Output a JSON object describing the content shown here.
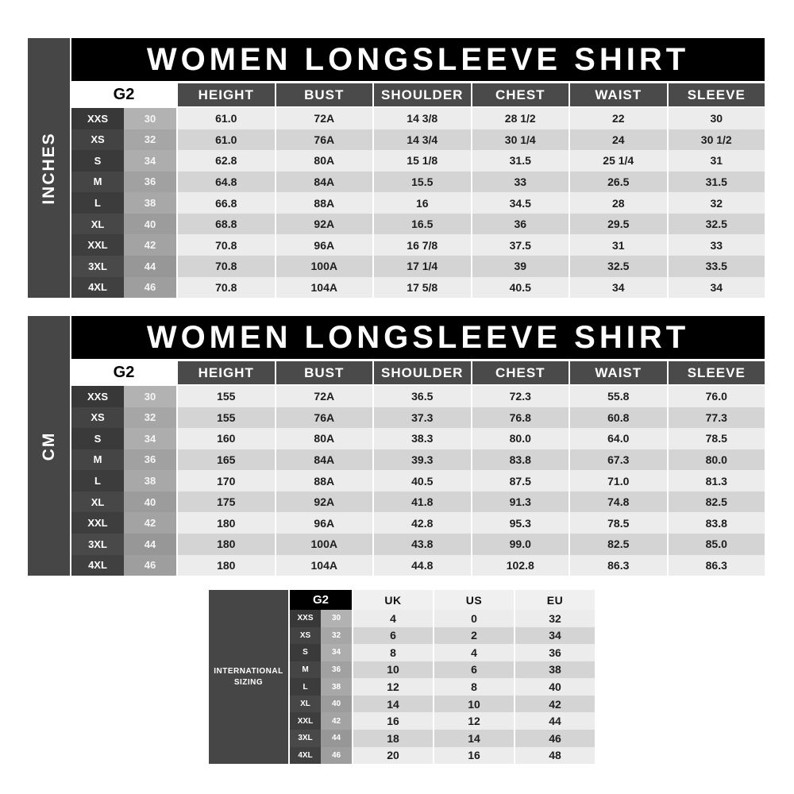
{
  "tables": [
    {
      "unit": "INCHES",
      "title": "WOMEN LONGSLEEVE SHIRT",
      "size_group": "G2",
      "columns": [
        "HEIGHT",
        "BUST",
        "SHOULDER",
        "CHEST",
        "WAIST",
        "SLEEVE"
      ],
      "rows": [
        {
          "size": "XXS",
          "num": "30",
          "values": [
            "61.0",
            "72A",
            "14 3/8",
            "28 1/2",
            "22",
            "30"
          ]
        },
        {
          "size": "XS",
          "num": "32",
          "values": [
            "61.0",
            "76A",
            "14 3/4",
            "30 1/4",
            "24",
            "30 1/2"
          ]
        },
        {
          "size": "S",
          "num": "34",
          "values": [
            "62.8",
            "80A",
            "15 1/8",
            "31.5",
            "25 1/4",
            "31"
          ]
        },
        {
          "size": "M",
          "num": "36",
          "values": [
            "64.8",
            "84A",
            "15.5",
            "33",
            "26.5",
            "31.5"
          ]
        },
        {
          "size": "L",
          "num": "38",
          "values": [
            "66.8",
            "88A",
            "16",
            "34.5",
            "28",
            "32"
          ]
        },
        {
          "size": "XL",
          "num": "40",
          "values": [
            "68.8",
            "92A",
            "16.5",
            "36",
            "29.5",
            "32.5"
          ]
        },
        {
          "size": "XXL",
          "num": "42",
          "values": [
            "70.8",
            "96A",
            "16 7/8",
            "37.5",
            "31",
            "33"
          ]
        },
        {
          "size": "3XL",
          "num": "44",
          "values": [
            "70.8",
            "100A",
            "17 1/4",
            "39",
            "32.5",
            "33.5"
          ]
        },
        {
          "size": "4XL",
          "num": "46",
          "values": [
            "70.8",
            "104A",
            "17 5/8",
            "40.5",
            "34",
            "34"
          ]
        }
      ]
    },
    {
      "unit": "CM",
      "title": "WOMEN LONGSLEEVE SHIRT",
      "size_group": "G2",
      "columns": [
        "HEIGHT",
        "BUST",
        "SHOULDER",
        "CHEST",
        "WAIST",
        "SLEEVE"
      ],
      "rows": [
        {
          "size": "XXS",
          "num": "30",
          "values": [
            "155",
            "72A",
            "36.5",
            "72.3",
            "55.8",
            "76.0"
          ]
        },
        {
          "size": "XS",
          "num": "32",
          "values": [
            "155",
            "76A",
            "37.3",
            "76.8",
            "60.8",
            "77.3"
          ]
        },
        {
          "size": "S",
          "num": "34",
          "values": [
            "160",
            "80A",
            "38.3",
            "80.0",
            "64.0",
            "78.5"
          ]
        },
        {
          "size": "M",
          "num": "36",
          "values": [
            "165",
            "84A",
            "39.3",
            "83.8",
            "67.3",
            "80.0"
          ]
        },
        {
          "size": "L",
          "num": "38",
          "values": [
            "170",
            "88A",
            "40.5",
            "87.5",
            "71.0",
            "81.3"
          ]
        },
        {
          "size": "XL",
          "num": "40",
          "values": [
            "175",
            "92A",
            "41.8",
            "91.3",
            "74.8",
            "82.5"
          ]
        },
        {
          "size": "XXL",
          "num": "42",
          "values": [
            "180",
            "96A",
            "42.8",
            "95.3",
            "78.5",
            "83.8"
          ]
        },
        {
          "size": "3XL",
          "num": "44",
          "values": [
            "180",
            "100A",
            "43.8",
            "99.0",
            "82.5",
            "85.0"
          ]
        },
        {
          "size": "4XL",
          "num": "46",
          "values": [
            "180",
            "104A",
            "44.8",
            "102.8",
            "86.3",
            "86.3"
          ]
        }
      ]
    }
  ],
  "international": {
    "label_line1": "INTERNATIONAL",
    "label_line2": "SIZING",
    "size_group": "G2",
    "columns": [
      "UK",
      "US",
      "EU"
    ],
    "rows": [
      {
        "size": "XXS",
        "num": "30",
        "values": [
          "4",
          "0",
          "32"
        ]
      },
      {
        "size": "XS",
        "num": "32",
        "values": [
          "6",
          "2",
          "34"
        ]
      },
      {
        "size": "S",
        "num": "34",
        "values": [
          "8",
          "4",
          "36"
        ]
      },
      {
        "size": "M",
        "num": "36",
        "values": [
          "10",
          "6",
          "38"
        ]
      },
      {
        "size": "L",
        "num": "38",
        "values": [
          "12",
          "8",
          "40"
        ]
      },
      {
        "size": "XL",
        "num": "40",
        "values": [
          "14",
          "10",
          "42"
        ]
      },
      {
        "size": "XXL",
        "num": "42",
        "values": [
          "16",
          "12",
          "44"
        ]
      },
      {
        "size": "3XL",
        "num": "44",
        "values": [
          "18",
          "14",
          "46"
        ]
      },
      {
        "size": "4XL",
        "num": "46",
        "values": [
          "20",
          "16",
          "48"
        ]
      }
    ]
  },
  "colors": {
    "title_bar": "#000000",
    "dark_panel": "#464646",
    "header_cell": "#4a4a4a",
    "intl_header_cell": "#f0f0f0",
    "row_light": "#ececec",
    "row_dark": "#d4d4d4",
    "size_label_base": "#383838",
    "size_number_base": "#b2b2b2"
  }
}
